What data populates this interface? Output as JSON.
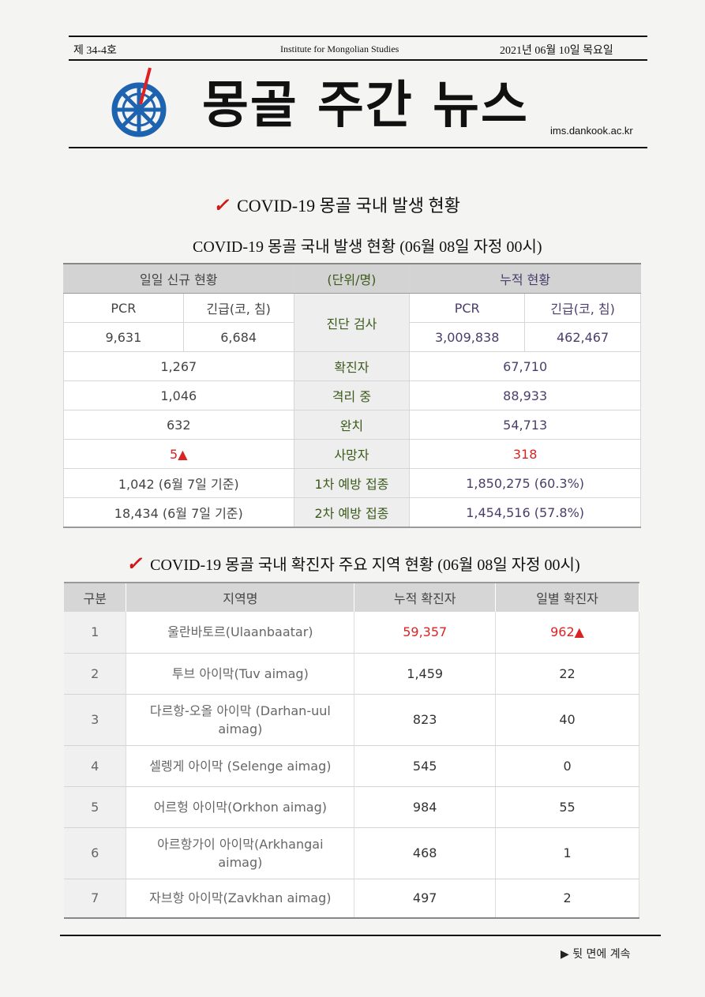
{
  "header": {
    "issue": "제 34-4호",
    "institute": "Institute for Mongolian Studies",
    "date": "2021년 06월 10일 목요일",
    "title": "몽골 주간 뉴스",
    "site": "ims.dankook.ac.kr"
  },
  "section1": {
    "heading": "COVID-19 몽골 국내 발생 현황",
    "table_title": "COVID-19 몽골 국내 발생 현황   (06월 08일 자정 00시)",
    "head_left": "일일 신규 현황",
    "head_mid": "(단위/명)",
    "head_right": "누적 현황",
    "pcr": "PCR",
    "emergency": "긴급(코, 침)",
    "test_label": "진단 검사",
    "daily_pcr": "9,631",
    "daily_emergency": "6,684",
    "cum_pcr": "3,009,838",
    "cum_emergency": "462,467",
    "rows": [
      {
        "daily": "1,267",
        "label": "확진자",
        "cum": "67,710"
      },
      {
        "daily": "1,046",
        "label": "격리 중",
        "cum": "88,933"
      },
      {
        "daily": "632",
        "label": "완치",
        "cum": "54,713"
      },
      {
        "daily": "5",
        "daily_mark": "▲",
        "label": "사망자",
        "cum": "318"
      },
      {
        "daily": "1,042 (6월 7일 기준)",
        "label": "1차 예방 접종",
        "cum": "1,850,275 (60.3%)"
      },
      {
        "daily": "18,434 (6월 7일 기준)",
        "label": "2차 예방 접종",
        "cum": "1,454,516 (57.8%)"
      }
    ]
  },
  "section2": {
    "heading": "COVID-19 몽골 국내 확진자 주요 지역 현황  (06월 08일 자정 00시)",
    "columns": [
      "구분",
      "지역명",
      "누적 확진자",
      "일별 확진자"
    ],
    "rows": [
      {
        "no": "1",
        "name": "울란바토르(Ulaanbaatar)",
        "cum": "59,357",
        "daily": "962",
        "mark": "▲"
      },
      {
        "no": "2",
        "name": "투브 아이막(Tuv aimag)",
        "cum": "1,459",
        "daily": "22"
      },
      {
        "no": "3",
        "name": "다르항-오올 아이막 (Darhan-uul aimag)",
        "cum": "823",
        "daily": "40"
      },
      {
        "no": "4",
        "name": "셀렝게 아이막 (Selenge aimag)",
        "cum": "545",
        "daily": "0"
      },
      {
        "no": "5",
        "name": "어르헝 아이막(Orkhon aimag)",
        "cum": "984",
        "daily": "55"
      },
      {
        "no": "6",
        "name": "아르항가이 아이막(Arkhangai aimag)",
        "cum": "468",
        "daily": "1"
      },
      {
        "no": "7",
        "name": "자브항 아이막(Zavkhan aimag)",
        "cum": "497",
        "daily": "2"
      }
    ]
  },
  "footer": {
    "continue": "▶ 뒷 면에 계속"
  },
  "colors": {
    "accent_red": "#d92424",
    "check_red": "#d01818",
    "logo_blue": "#1e63b0"
  }
}
